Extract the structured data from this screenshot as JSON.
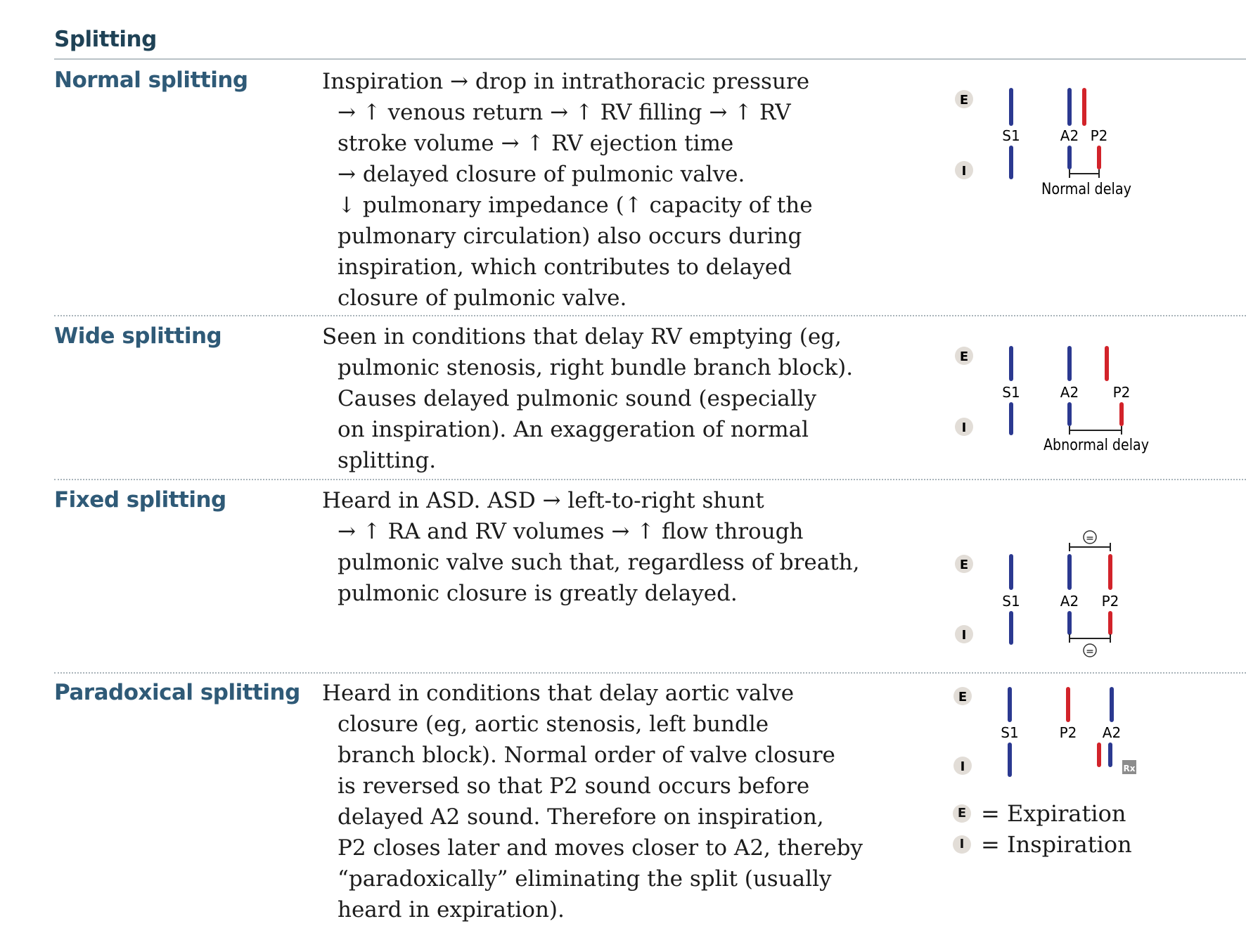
{
  "section_title": "Splitting",
  "rows": [
    {
      "term": "Normal splitting",
      "lines": [
        "Inspiration → drop in intrathoracic pressure",
        "→ ↑ venous return → ↑ RV filling → ↑ RV",
        "stroke volume → ↑ RV ejection time",
        "→ delayed closure of pulmonic valve.",
        "↓ pulmonary impedance (↑ capacity of the",
        "pulmonary circulation) also occurs during",
        "inspiration, which contributes to delayed",
        "closure of pulmonic valve."
      ],
      "figure": {
        "labels": [
          "S1",
          "A2",
          "P2"
        ],
        "caption": "Normal delay"
      }
    },
    {
      "term": "Wide splitting",
      "lines": [
        "Seen in conditions that delay RV emptying (eg,",
        "pulmonic stenosis, right bundle branch block).",
        "Causes delayed pulmonic sound (especially",
        "on inspiration). An exaggeration of normal",
        "splitting."
      ],
      "figure": {
        "labels": [
          "S1",
          "A2",
          "P2"
        ],
        "caption": "Abnormal delay"
      }
    },
    {
      "term": "Fixed splitting",
      "lines": [
        "Heard in ASD. ASD → left-to-right shunt",
        "→ ↑ RA and RV volumes → ↑ flow through",
        "pulmonic valve such that, regardless of breath,",
        "pulmonic closure is greatly delayed."
      ],
      "figure": {
        "labels": [
          "S1",
          "A2",
          "P2"
        ],
        "equal_mark": "="
      }
    },
    {
      "term": "Paradoxical splitting",
      "lines": [
        "Heard in conditions that delay aortic valve",
        "closure (eg, aortic stenosis, left bundle",
        "branch block). Normal order of valve closure",
        "is reversed so that P2 sound occurs before",
        "delayed A2 sound. Therefore on inspiration,",
        "P2 closes later and moves closer to A2, thereby",
        "“paradoxically” eliminating the split (usually",
        "heard in expiration)."
      ],
      "figure": {
        "labels": [
          "S1",
          "P2",
          "A2"
        ],
        "logo": "Rx"
      }
    }
  ],
  "markers": {
    "expiration": "E",
    "inspiration": "I"
  },
  "legend": [
    {
      "badge": "E",
      "text": "= Expiration"
    },
    {
      "badge": "I",
      "text": "= Inspiration"
    }
  ],
  "colors": {
    "aortic": "#2b3990",
    "pulmonic": "#d2232a",
    "term": "#2f5a77",
    "title": "#1f4256"
  }
}
